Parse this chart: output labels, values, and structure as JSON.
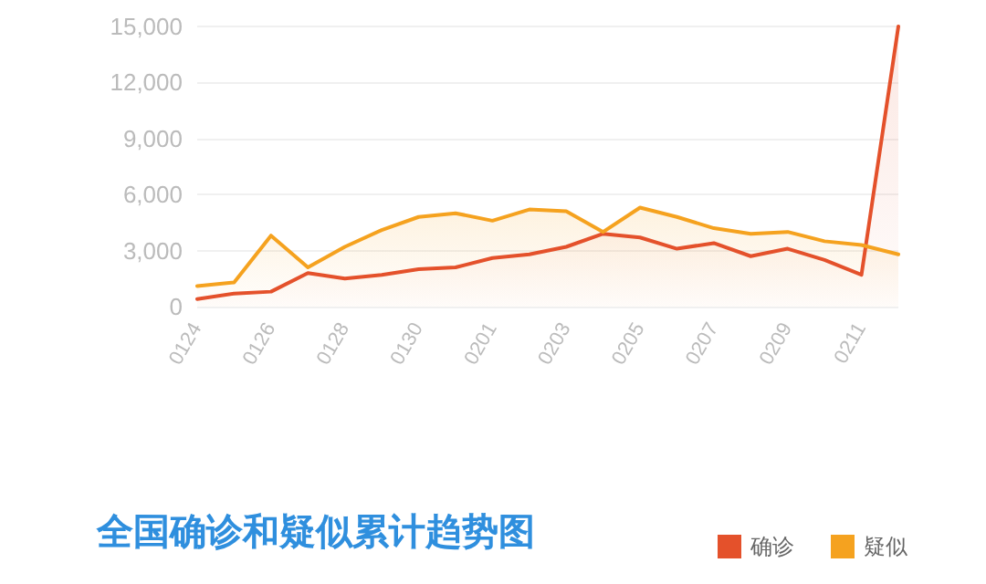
{
  "chart_data": {
    "type": "area",
    "title": "全国确诊和疑似累计趋势图",
    "categories": [
      "0124",
      null,
      "0126",
      null,
      "0128",
      null,
      "0130",
      null,
      "0201",
      null,
      "0203",
      null,
      "0205",
      null,
      "0207",
      null,
      "0209",
      null,
      "0211",
      null
    ],
    "series": [
      {
        "name": "确诊",
        "color": "#e4512b",
        "values": [
          400,
          700,
          800,
          1800,
          1500,
          1700,
          2000,
          2100,
          2600,
          2800,
          3200,
          3900,
          3700,
          3100,
          3400,
          2700,
          3100,
          2500,
          1700,
          15000
        ]
      },
      {
        "name": "疑似",
        "color": "#f5a21f",
        "values": [
          1100,
          1300,
          3800,
          2100,
          3200,
          4100,
          4800,
          5000,
          4600,
          5200,
          5100,
          4000,
          5300,
          4800,
          4200,
          3900,
          4000,
          3500,
          3300,
          2800
        ]
      }
    ],
    "ylim": [
      0,
      15000
    ],
    "yticks": [
      0,
      {
        "value": 3000,
        "label": "3,000"
      },
      {
        "value": 6000,
        "label": "6,000"
      },
      {
        "value": 9000,
        "label": "9,000"
      },
      {
        "value": 12000,
        "label": "12,000"
      },
      {
        "value": 15000,
        "label": "15,000"
      }
    ],
    "grid": "y",
    "legend": "bottom right"
  }
}
